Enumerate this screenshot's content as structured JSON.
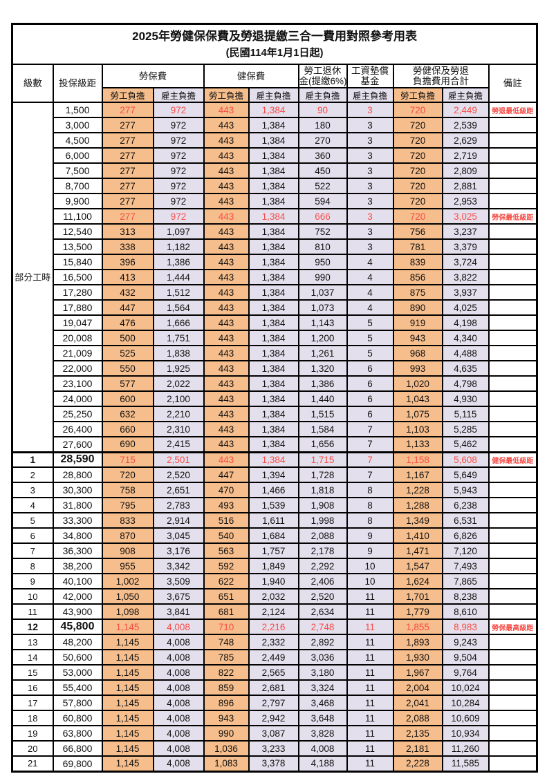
{
  "title": "2025年勞健保保費及勞退提繳三合一費用對照參考用表",
  "subtitle": "(民國114年1月1日起)",
  "colors": {
    "employee_fill": "#F6BE8C",
    "employer_fill": "#E4DFEC",
    "highlight_text": "#F84C46",
    "border": "#000000"
  },
  "header": {
    "level": "級數",
    "salary": "投保級距",
    "labor_ins": "勞保費",
    "health_ins": "健保費",
    "pension_line1": "勞工退休",
    "pension_line2": "金(提繳6%)",
    "wage_fund_line1": "工資墊償",
    "wage_fund_line2": "基金",
    "total_line1": "勞健保及勞退",
    "total_line2": "負擔費用合計",
    "remark": "備註",
    "employee": "勞工負擔",
    "employer": "雇主負擔"
  },
  "part_time_label": "部分工時",
  "part_time_row_count": 23,
  "rows": [
    {
      "level": "",
      "salary": "1,500",
      "values": [
        "277",
        "972",
        "443",
        "1,384",
        "90",
        "3",
        "720",
        "2,449"
      ],
      "remark": "勞退最低級距",
      "red": true,
      "bold": false
    },
    {
      "level": "",
      "salary": "3,000",
      "values": [
        "277",
        "972",
        "443",
        "1,384",
        "180",
        "3",
        "720",
        "2,539"
      ],
      "remark": "",
      "red": false,
      "bold": false
    },
    {
      "level": "",
      "salary": "4,500",
      "values": [
        "277",
        "972",
        "443",
        "1,384",
        "270",
        "3",
        "720",
        "2,629"
      ],
      "remark": "",
      "red": false,
      "bold": false
    },
    {
      "level": "",
      "salary": "6,000",
      "values": [
        "277",
        "972",
        "443",
        "1,384",
        "360",
        "3",
        "720",
        "2,719"
      ],
      "remark": "",
      "red": false,
      "bold": false
    },
    {
      "level": "",
      "salary": "7,500",
      "values": [
        "277",
        "972",
        "443",
        "1,384",
        "450",
        "3",
        "720",
        "2,809"
      ],
      "remark": "",
      "red": false,
      "bold": false
    },
    {
      "level": "",
      "salary": "8,700",
      "values": [
        "277",
        "972",
        "443",
        "1,384",
        "522",
        "3",
        "720",
        "2,881"
      ],
      "remark": "",
      "red": false,
      "bold": false
    },
    {
      "level": "",
      "salary": "9,900",
      "values": [
        "277",
        "972",
        "443",
        "1,384",
        "594",
        "3",
        "720",
        "2,953"
      ],
      "remark": "",
      "red": false,
      "bold": false
    },
    {
      "level": "",
      "salary": "11,100",
      "values": [
        "277",
        "972",
        "443",
        "1,384",
        "666",
        "3",
        "720",
        "3,025"
      ],
      "remark": "勞保最低級距",
      "red": true,
      "bold": false
    },
    {
      "level": "",
      "salary": "12,540",
      "values": [
        "313",
        "1,097",
        "443",
        "1,384",
        "752",
        "3",
        "756",
        "3,237"
      ],
      "remark": "",
      "red": false,
      "bold": false
    },
    {
      "level": "",
      "salary": "13,500",
      "values": [
        "338",
        "1,182",
        "443",
        "1,384",
        "810",
        "3",
        "781",
        "3,379"
      ],
      "remark": "",
      "red": false,
      "bold": false
    },
    {
      "level": "",
      "salary": "15,840",
      "values": [
        "396",
        "1,386",
        "443",
        "1,384",
        "950",
        "4",
        "839",
        "3,724"
      ],
      "remark": "",
      "red": false,
      "bold": false
    },
    {
      "level": "",
      "salary": "16,500",
      "values": [
        "413",
        "1,444",
        "443",
        "1,384",
        "990",
        "4",
        "856",
        "3,822"
      ],
      "remark": "",
      "red": false,
      "bold": false
    },
    {
      "level": "",
      "salary": "17,280",
      "values": [
        "432",
        "1,512",
        "443",
        "1,384",
        "1,037",
        "4",
        "875",
        "3,937"
      ],
      "remark": "",
      "red": false,
      "bold": false
    },
    {
      "level": "",
      "salary": "17,880",
      "values": [
        "447",
        "1,564",
        "443",
        "1,384",
        "1,073",
        "4",
        "890",
        "4,025"
      ],
      "remark": "",
      "red": false,
      "bold": false
    },
    {
      "level": "",
      "salary": "19,047",
      "values": [
        "476",
        "1,666",
        "443",
        "1,384",
        "1,143",
        "5",
        "919",
        "4,198"
      ],
      "remark": "",
      "red": false,
      "bold": false
    },
    {
      "level": "",
      "salary": "20,008",
      "values": [
        "500",
        "1,751",
        "443",
        "1,384",
        "1,200",
        "5",
        "943",
        "4,340"
      ],
      "remark": "",
      "red": false,
      "bold": false
    },
    {
      "level": "",
      "salary": "21,009",
      "values": [
        "525",
        "1,838",
        "443",
        "1,384",
        "1,261",
        "5",
        "968",
        "4,488"
      ],
      "remark": "",
      "red": false,
      "bold": false
    },
    {
      "level": "",
      "salary": "22,000",
      "values": [
        "550",
        "1,925",
        "443",
        "1,384",
        "1,320",
        "6",
        "993",
        "4,635"
      ],
      "remark": "",
      "red": false,
      "bold": false
    },
    {
      "level": "",
      "salary": "23,100",
      "values": [
        "577",
        "2,022",
        "443",
        "1,384",
        "1,386",
        "6",
        "1,020",
        "4,798"
      ],
      "remark": "",
      "red": false,
      "bold": false
    },
    {
      "level": "",
      "salary": "24,000",
      "values": [
        "600",
        "2,100",
        "443",
        "1,384",
        "1,440",
        "6",
        "1,043",
        "4,930"
      ],
      "remark": "",
      "red": false,
      "bold": false
    },
    {
      "level": "",
      "salary": "25,250",
      "values": [
        "632",
        "2,210",
        "443",
        "1,384",
        "1,515",
        "6",
        "1,075",
        "5,115"
      ],
      "remark": "",
      "red": false,
      "bold": false
    },
    {
      "level": "",
      "salary": "26,400",
      "values": [
        "660",
        "2,310",
        "443",
        "1,384",
        "1,584",
        "7",
        "1,103",
        "5,285"
      ],
      "remark": "",
      "red": false,
      "bold": false
    },
    {
      "level": "",
      "salary": "27,600",
      "values": [
        "690",
        "2,415",
        "443",
        "1,384",
        "1,656",
        "7",
        "1,133",
        "5,462"
      ],
      "remark": "",
      "red": false,
      "bold": false
    },
    {
      "level": "1",
      "salary": "28,590",
      "values": [
        "715",
        "2,501",
        "443",
        "1,384",
        "1,715",
        "7",
        "1,158",
        "5,608"
      ],
      "remark": "健保最低級距",
      "red": true,
      "bold": true
    },
    {
      "level": "2",
      "salary": "28,800",
      "values": [
        "720",
        "2,520",
        "447",
        "1,394",
        "1,728",
        "7",
        "1,167",
        "5,649"
      ],
      "remark": "",
      "red": false,
      "bold": false
    },
    {
      "level": "3",
      "salary": "30,300",
      "values": [
        "758",
        "2,651",
        "470",
        "1,466",
        "1,818",
        "8",
        "1,228",
        "5,943"
      ],
      "remark": "",
      "red": false,
      "bold": false
    },
    {
      "level": "4",
      "salary": "31,800",
      "values": [
        "795",
        "2,783",
        "493",
        "1,539",
        "1,908",
        "8",
        "1,288",
        "6,238"
      ],
      "remark": "",
      "red": false,
      "bold": false
    },
    {
      "level": "5",
      "salary": "33,300",
      "values": [
        "833",
        "2,914",
        "516",
        "1,611",
        "1,998",
        "8",
        "1,349",
        "6,531"
      ],
      "remark": "",
      "red": false,
      "bold": false
    },
    {
      "level": "6",
      "salary": "34,800",
      "values": [
        "870",
        "3,045",
        "540",
        "1,684",
        "2,088",
        "9",
        "1,410",
        "6,826"
      ],
      "remark": "",
      "red": false,
      "bold": false
    },
    {
      "level": "7",
      "salary": "36,300",
      "values": [
        "908",
        "3,176",
        "563",
        "1,757",
        "2,178",
        "9",
        "1,471",
        "7,120"
      ],
      "remark": "",
      "red": false,
      "bold": false
    },
    {
      "level": "8",
      "salary": "38,200",
      "values": [
        "955",
        "3,342",
        "592",
        "1,849",
        "2,292",
        "10",
        "1,547",
        "7,493"
      ],
      "remark": "",
      "red": false,
      "bold": false
    },
    {
      "level": "9",
      "salary": "40,100",
      "values": [
        "1,002",
        "3,509",
        "622",
        "1,940",
        "2,406",
        "10",
        "1,624",
        "7,865"
      ],
      "remark": "",
      "red": false,
      "bold": false
    },
    {
      "level": "10",
      "salary": "42,000",
      "values": [
        "1,050",
        "3,675",
        "651",
        "2,032",
        "2,520",
        "11",
        "1,701",
        "8,238"
      ],
      "remark": "",
      "red": false,
      "bold": false
    },
    {
      "level": "11",
      "salary": "43,900",
      "values": [
        "1,098",
        "3,841",
        "681",
        "2,124",
        "2,634",
        "11",
        "1,779",
        "8,610"
      ],
      "remark": "",
      "red": false,
      "bold": false
    },
    {
      "level": "12",
      "salary": "45,800",
      "values": [
        "1,145",
        "4,008",
        "710",
        "2,216",
        "2,748",
        "11",
        "1,855",
        "8,983"
      ],
      "remark": "勞保最高級距",
      "red": true,
      "bold": true
    },
    {
      "level": "13",
      "salary": "48,200",
      "values": [
        "1,145",
        "4,008",
        "748",
        "2,332",
        "2,892",
        "11",
        "1,893",
        "9,243"
      ],
      "remark": "",
      "red": false,
      "bold": false
    },
    {
      "level": "14",
      "salary": "50,600",
      "values": [
        "1,145",
        "4,008",
        "785",
        "2,449",
        "3,036",
        "11",
        "1,930",
        "9,504"
      ],
      "remark": "",
      "red": false,
      "bold": false
    },
    {
      "level": "15",
      "salary": "53,000",
      "values": [
        "1,145",
        "4,008",
        "822",
        "2,565",
        "3,180",
        "11",
        "1,967",
        "9,764"
      ],
      "remark": "",
      "red": false,
      "bold": false
    },
    {
      "level": "16",
      "salary": "55,400",
      "values": [
        "1,145",
        "4,008",
        "859",
        "2,681",
        "3,324",
        "11",
        "2,004",
        "10,024"
      ],
      "remark": "",
      "red": false,
      "bold": false
    },
    {
      "level": "17",
      "salary": "57,800",
      "values": [
        "1,145",
        "4,008",
        "896",
        "2,797",
        "3,468",
        "11",
        "2,041",
        "10,284"
      ],
      "remark": "",
      "red": false,
      "bold": false
    },
    {
      "level": "18",
      "salary": "60,800",
      "values": [
        "1,145",
        "4,008",
        "943",
        "2,942",
        "3,648",
        "11",
        "2,088",
        "10,609"
      ],
      "remark": "",
      "red": false,
      "bold": false
    },
    {
      "level": "19",
      "salary": "63,800",
      "values": [
        "1,145",
        "4,008",
        "990",
        "3,087",
        "3,828",
        "11",
        "2,135",
        "10,934"
      ],
      "remark": "",
      "red": false,
      "bold": false
    },
    {
      "level": "20",
      "salary": "66,800",
      "values": [
        "1,145",
        "4,008",
        "1,036",
        "3,233",
        "4,008",
        "11",
        "2,181",
        "11,260"
      ],
      "remark": "",
      "red": false,
      "bold": false
    },
    {
      "level": "21",
      "salary": "69,800",
      "values": [
        "1,145",
        "4,008",
        "1,083",
        "3,378",
        "4,188",
        "11",
        "2,228",
        "11,585"
      ],
      "remark": "",
      "red": false,
      "bold": false
    }
  ]
}
